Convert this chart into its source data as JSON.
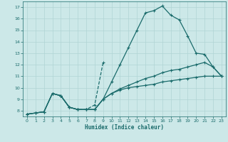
{
  "xlabel": "Humidex (Indice chaleur)",
  "bg_color": "#cce8e8",
  "grid_color": "#b0d4d4",
  "line_color": "#1a6b6b",
  "xlim": [
    -0.5,
    23.5
  ],
  "ylim": [
    7.5,
    17.5
  ],
  "xticks": [
    0,
    1,
    2,
    3,
    4,
    5,
    6,
    7,
    8,
    9,
    10,
    11,
    12,
    13,
    14,
    15,
    16,
    17,
    18,
    19,
    20,
    21,
    22,
    23
  ],
  "yticks": [
    8,
    9,
    10,
    11,
    12,
    13,
    14,
    15,
    16,
    17
  ],
  "series": [
    {
      "x": [
        0,
        1,
        2,
        3,
        4,
        5,
        6,
        7,
        8,
        9,
        10,
        11,
        12,
        13,
        14,
        15,
        16,
        17,
        18,
        19,
        20,
        21,
        22,
        23
      ],
      "y": [
        7.7,
        7.8,
        7.9,
        9.5,
        9.3,
        8.3,
        8.1,
        8.1,
        8.1,
        9.0,
        10.5,
        12.0,
        13.5,
        15.0,
        16.5,
        16.7,
        17.1,
        16.3,
        15.9,
        14.5,
        13.0,
        12.9,
        11.8,
        11.0
      ],
      "linestyle": "solid"
    },
    {
      "x": [
        3,
        4,
        5,
        6,
        7,
        8,
        9
      ],
      "y": [
        9.5,
        9.3,
        8.3,
        8.1,
        8.1,
        8.5,
        12.2
      ],
      "linestyle": "dashed"
    },
    {
      "x": [
        0,
        1,
        2,
        3,
        4,
        5,
        6,
        7,
        8,
        9,
        10,
        11,
        12,
        13,
        14,
        15,
        16,
        17,
        18,
        19,
        20,
        21,
        22,
        23
      ],
      "y": [
        7.7,
        7.8,
        7.9,
        9.5,
        9.3,
        8.3,
        8.1,
        8.1,
        8.1,
        9.0,
        9.5,
        9.8,
        10.0,
        10.1,
        10.2,
        10.3,
        10.5,
        10.6,
        10.7,
        10.8,
        10.9,
        11.0,
        11.0,
        11.0
      ],
      "linestyle": "solid"
    },
    {
      "x": [
        0,
        1,
        2,
        3,
        4,
        5,
        6,
        7,
        8,
        9,
        10,
        11,
        12,
        13,
        14,
        15,
        16,
        17,
        18,
        19,
        20,
        21,
        22,
        23
      ],
      "y": [
        7.7,
        7.8,
        7.9,
        9.5,
        9.3,
        8.3,
        8.1,
        8.1,
        8.1,
        9.0,
        9.5,
        9.9,
        10.2,
        10.5,
        10.8,
        11.0,
        11.3,
        11.5,
        11.6,
        11.8,
        12.0,
        12.2,
        11.8,
        11.0
      ],
      "linestyle": "solid"
    }
  ]
}
